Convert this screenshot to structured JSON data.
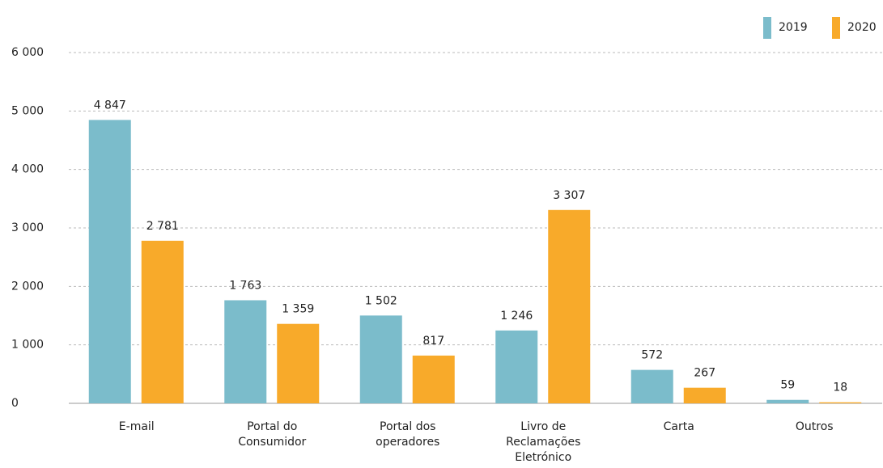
{
  "chart_data": {
    "type": "bar",
    "categories": [
      "E-mail",
      "Portal do Consumidor",
      "Portal dos operadores",
      "Livro de Reclamações Eletrónico",
      "Carta",
      "Outros"
    ],
    "series": [
      {
        "name": "2019",
        "color": "#7bbccb",
        "values": [
          4847,
          1763,
          1502,
          1246,
          572,
          59
        ],
        "value_labels": [
          "4 847",
          "1 763",
          "1 502",
          "1 246",
          "572",
          "59"
        ]
      },
      {
        "name": "2020",
        "color": "#f8aa2a",
        "values": [
          2781,
          1359,
          817,
          3307,
          267,
          18
        ],
        "value_labels": [
          "2 781",
          "1 359",
          "817",
          "3 307",
          "267",
          "18"
        ]
      }
    ],
    "ylim": [
      0,
      6000
    ],
    "yticks": [
      0,
      {
        "value": 1000,
        "label": "1 000"
      },
      {
        "value": 2000,
        "label": "2 000"
      },
      {
        "value": 3000,
        "label": "3 000"
      },
      {
        "value": 4000,
        "label": "4 000"
      },
      {
        "value": 5000,
        "label": "5 000"
      },
      {
        "value": 6000,
        "label": "6 000"
      }
    ],
    "grid": true,
    "legend": "top-right"
  }
}
